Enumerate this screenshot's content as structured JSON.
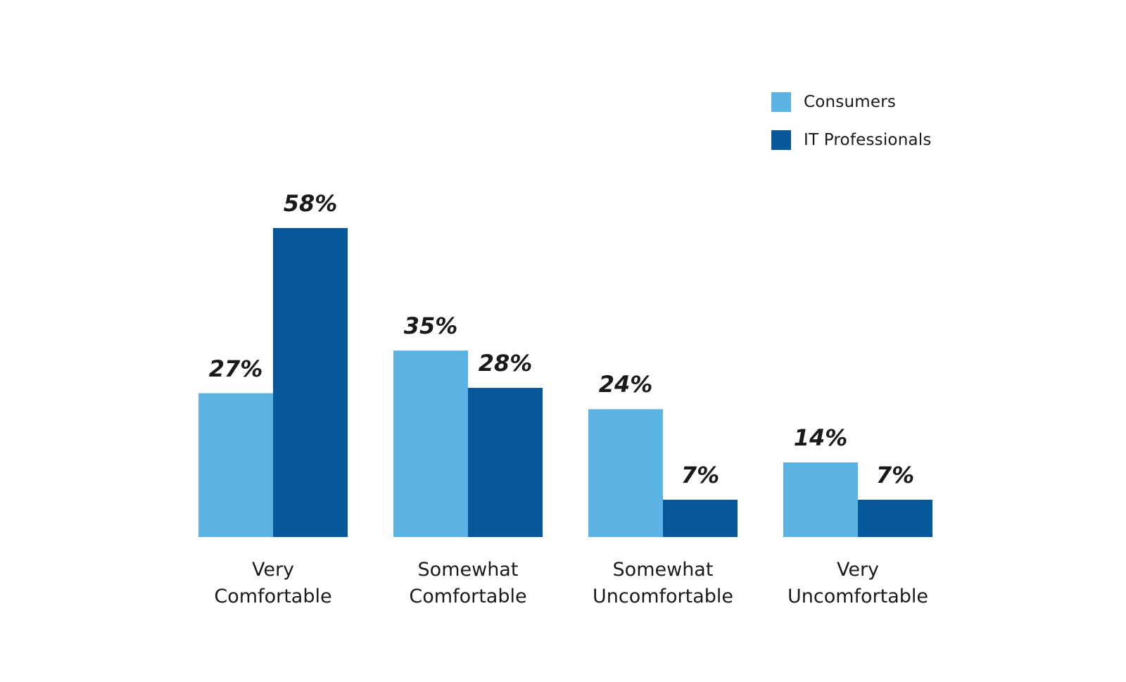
{
  "chart_data": {
    "type": "bar",
    "categories": [
      [
        "Very",
        "Comfortable"
      ],
      [
        "Somewhat",
        "Comfortable"
      ],
      [
        "Somewhat",
        "Uncomfortable"
      ],
      [
        "Very",
        "Uncomfortable"
      ]
    ],
    "series": [
      {
        "name": "Consumers",
        "color": "#5BB3E4",
        "values": [
          27,
          35,
          24,
          14
        ],
        "labels": [
          "27%",
          "35%",
          "24%",
          "14%"
        ]
      },
      {
        "name": "IT Professionals",
        "color": "#07579B",
        "values": [
          58,
          28,
          7,
          7
        ],
        "labels": [
          "58%",
          "28%",
          "7%",
          "7%"
        ]
      }
    ],
    "ylim": [
      0,
      58
    ],
    "grid": false,
    "legend": "top-right"
  }
}
